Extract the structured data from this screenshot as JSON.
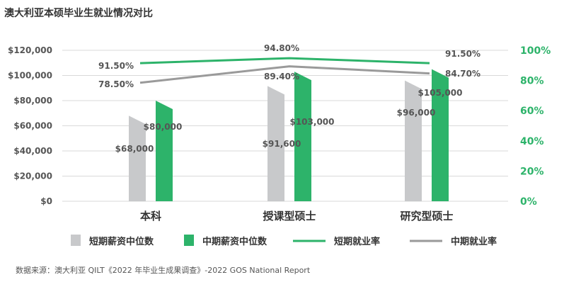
{
  "title": "澳大利亚本硕毕业生就业情况对比",
  "source": "数据来源：澳大利亚 QILT《2022 年毕业生成果调查》-2022 GOS National Report",
  "colors": {
    "gray": "#c8c9cb",
    "green": "#2db36a",
    "gray_line": "#9a9a9a",
    "text": "#555555",
    "grid": "#d9d9d9"
  },
  "chart_data": {
    "type": "bar",
    "title": "澳大利亚本硕毕业生就业情况对比",
    "categories": [
      "本科",
      "授课型硕士",
      "研究型硕士"
    ],
    "left_axis": {
      "ylim": [
        0,
        120000
      ],
      "ticks": [
        "$0",
        "$20,000",
        "$40,000",
        "$60,000",
        "$80,000",
        "$100,000",
        "$120,000"
      ]
    },
    "right_axis": {
      "ylim": [
        0,
        100
      ],
      "ticks": [
        "0%",
        "20%",
        "40%",
        "60%",
        "80%",
        "100%"
      ]
    },
    "series": [
      {
        "name": "短期薪资中位数",
        "type": "bar",
        "axis": "left",
        "values": [
          68000,
          91600,
          96000
        ],
        "labels": [
          "$68,000",
          "$91,600",
          "$96,000"
        ]
      },
      {
        "name": "中期薪资中位数",
        "type": "bar",
        "axis": "left",
        "values": [
          80000,
          103000,
          105000
        ],
        "labels": [
          "$80,000",
          "$103,000",
          "$105,000"
        ]
      },
      {
        "name": "短期就业率",
        "type": "line",
        "axis": "right",
        "values": [
          91.5,
          94.8,
          91.5
        ],
        "labels": [
          "91.50%",
          "94.80%",
          "91.50%"
        ]
      },
      {
        "name": "中期就业率",
        "type": "line",
        "axis": "right",
        "values": [
          78.5,
          89.4,
          84.7
        ],
        "labels": [
          "78.50%",
          "89.40%",
          "84.70%"
        ]
      }
    ],
    "legend": [
      "短期薪资中位数",
      "中期薪资中位数",
      "短期就业率",
      "中期就业率"
    ]
  }
}
